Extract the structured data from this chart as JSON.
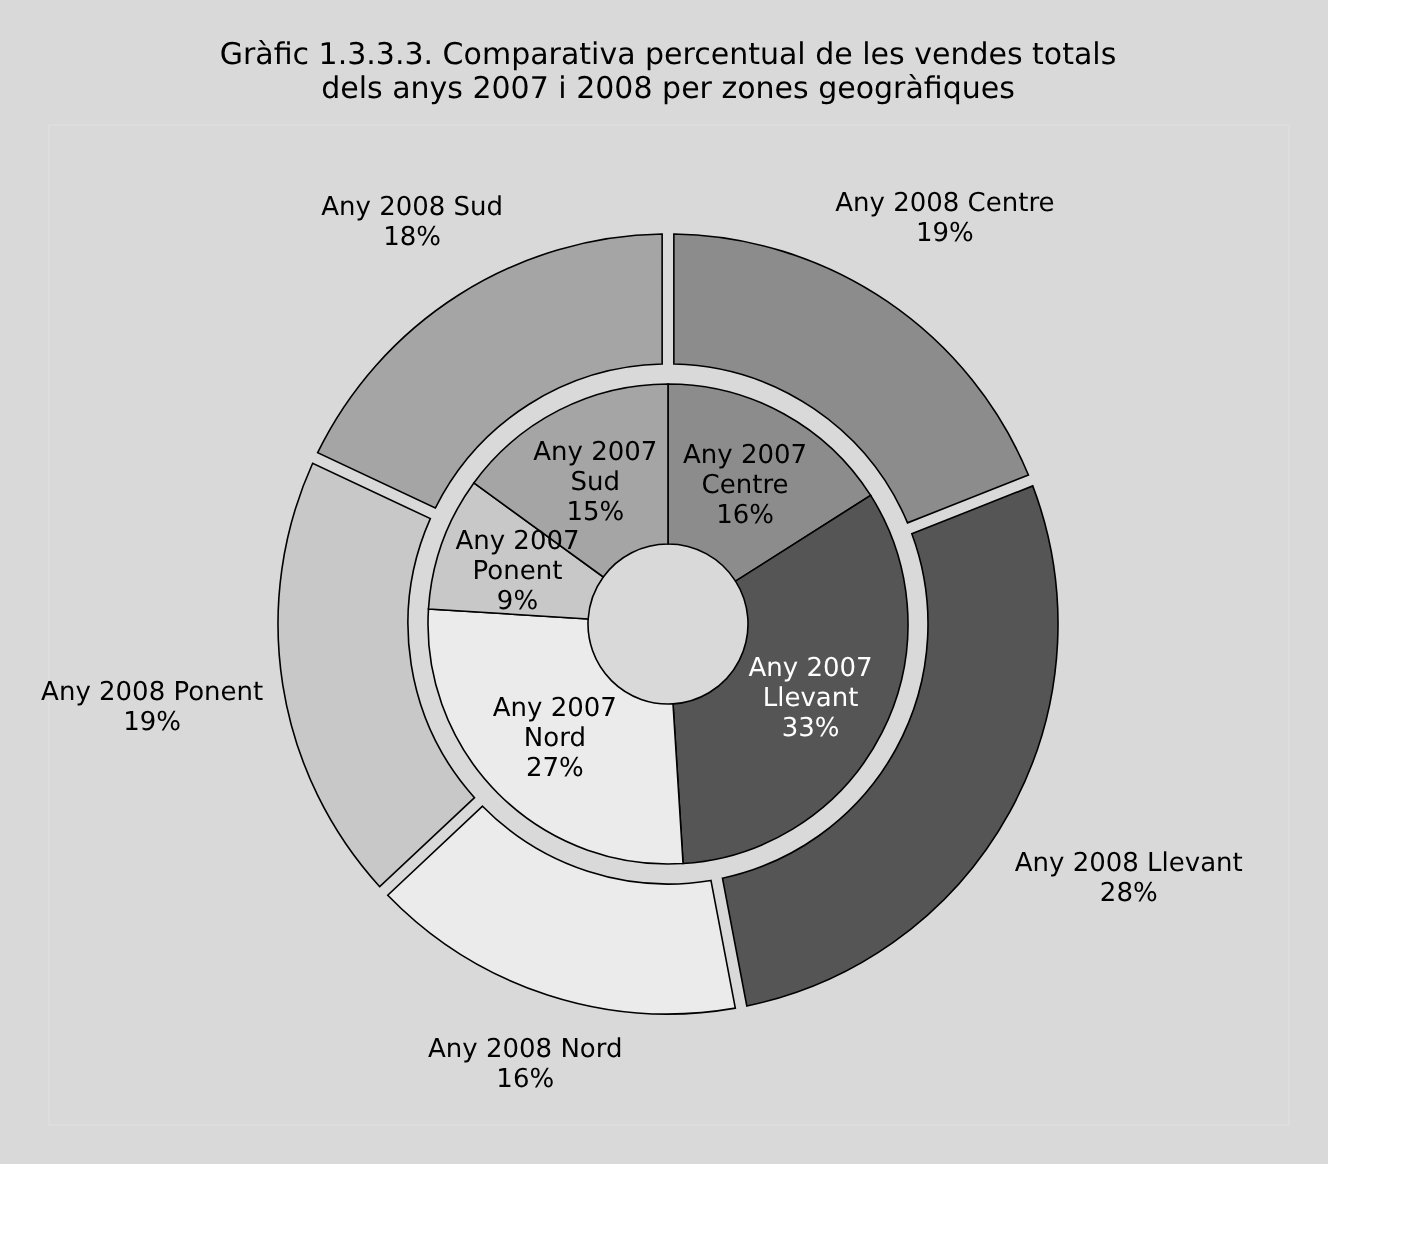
{
  "chart_data": {
    "type": "donut",
    "title": "Gràfic 1.3.3.3. Comparativa percentual de les vendes totals\ndels anys 2007 i 2008 per zones geogràfiques",
    "categories": [
      "Centre",
      "Llevant",
      "Nord",
      "Ponent",
      "Sud"
    ],
    "colors": [
      "#8c8c8c",
      "#555555",
      "#ebebeb",
      "#c8c8c8",
      "#a5a5a5"
    ],
    "series": [
      {
        "name": "Any 2007",
        "values": [
          16,
          33,
          27,
          9,
          15
        ],
        "value_labels": [
          "16%",
          "33%",
          "27%",
          "9%",
          "15%"
        ]
      },
      {
        "name": "Any 2008",
        "values": [
          19,
          28,
          16,
          19,
          18
        ],
        "value_labels": [
          "19%",
          "28%",
          "16%",
          "19%",
          "18%"
        ]
      }
    ]
  }
}
